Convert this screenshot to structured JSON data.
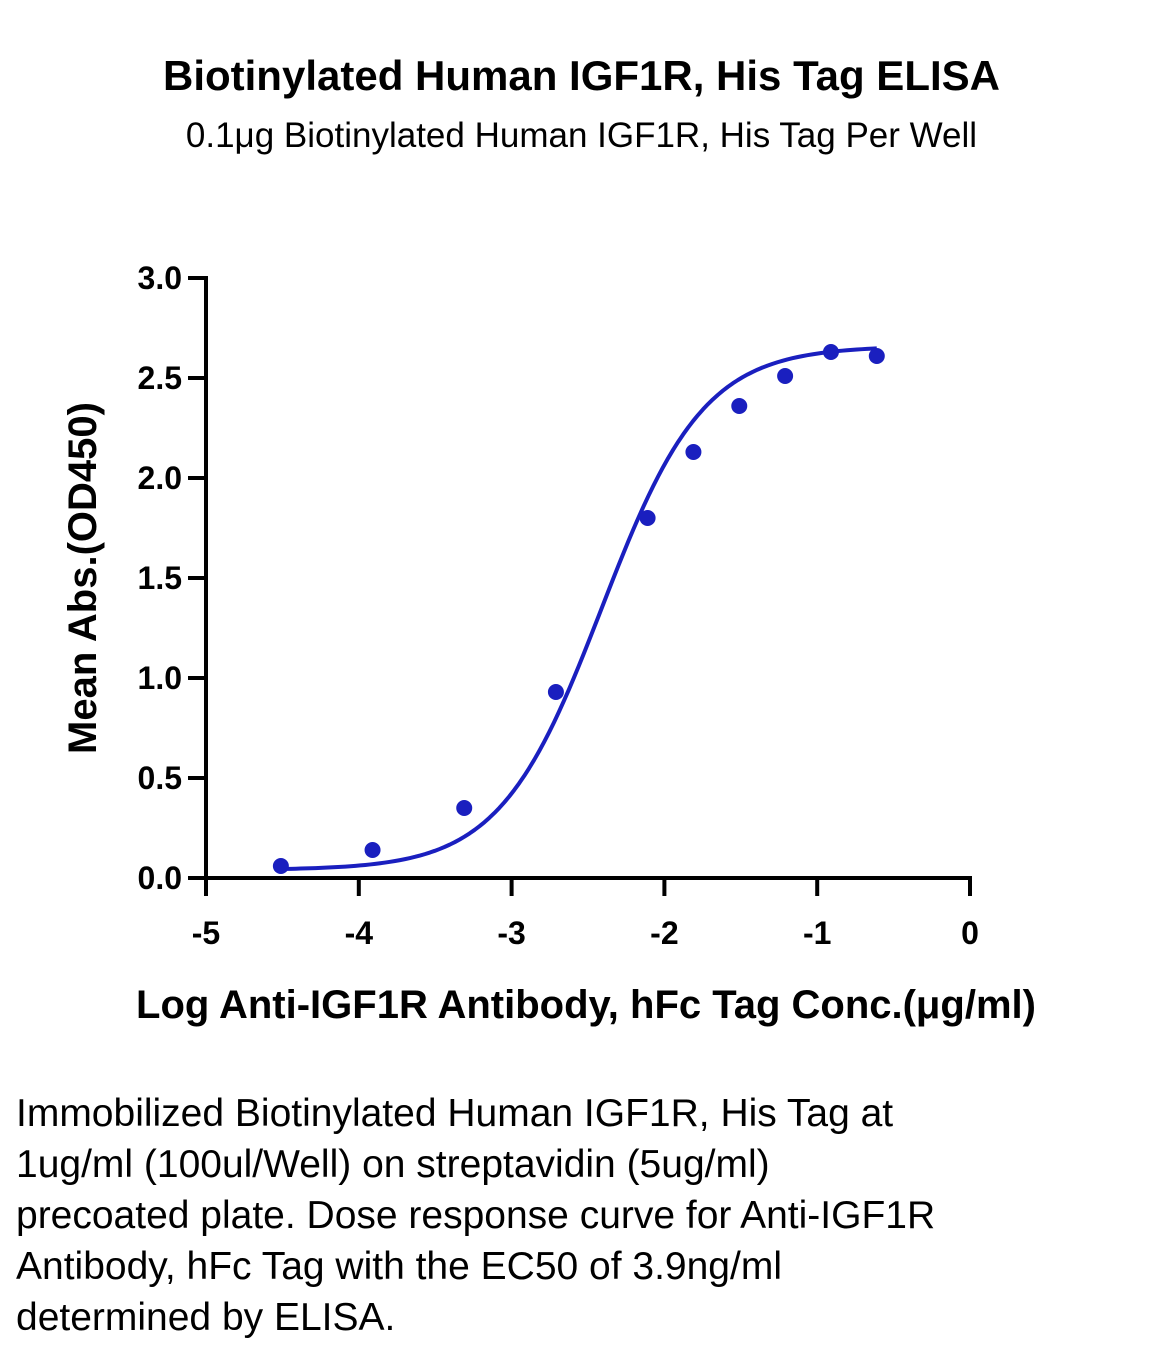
{
  "chart_data": {
    "type": "scatter",
    "title": "Biotinylated Human IGF1R, His Tag ELISA",
    "subtitle": "0.1μg Biotinylated Human IGF1R, His Tag Per Well",
    "xlabel": "Log Anti-IGF1R Antibody, hFc Tag Conc.(μg/ml)",
    "ylabel": "Mean Abs.(OD450)",
    "xlim": [
      -5,
      0
    ],
    "ylim": [
      0,
      3
    ],
    "x_ticks": [
      "-5",
      "-4",
      "-3",
      "-2",
      "-1",
      "0"
    ],
    "x_tick_values": [
      -5,
      -4,
      -3,
      -2,
      -1,
      0
    ],
    "y_ticks": [
      "0.0",
      "0.5",
      "1.0",
      "1.5",
      "2.0",
      "2.5",
      "3.0"
    ],
    "y_tick_values": [
      0,
      0.5,
      1,
      1.5,
      2,
      2.5,
      3
    ],
    "grid": false,
    "legend": "none",
    "series": [
      {
        "color": "#1a1fbf",
        "marker": "circle",
        "fit": "four-parameter logistic",
        "x": [
          -4.51,
          -3.91,
          -3.31,
          -2.71,
          -2.11,
          -1.81,
          -1.51,
          -1.21,
          -0.91,
          -0.61
        ],
        "y": [
          0.06,
          0.14,
          0.35,
          0.93,
          1.8,
          2.13,
          2.36,
          2.51,
          2.63,
          2.61
        ]
      }
    ],
    "fit_curve": {
      "bottom": 0.04,
      "top": 2.66,
      "log_ec50": -2.41,
      "hill_slope": 1.3,
      "x_range": [
        -4.51,
        -0.61
      ]
    }
  },
  "caption": "Immobilized Biotinylated Human IGF1R, His Tag at 1ug/ml (100ul/Well) on streptavidin (5ug/ml) precoated plate. Dose response curve for Anti-IGF1R Antibody, hFc Tag with the EC50 of 3.9ng/ml determined by ELISA."
}
